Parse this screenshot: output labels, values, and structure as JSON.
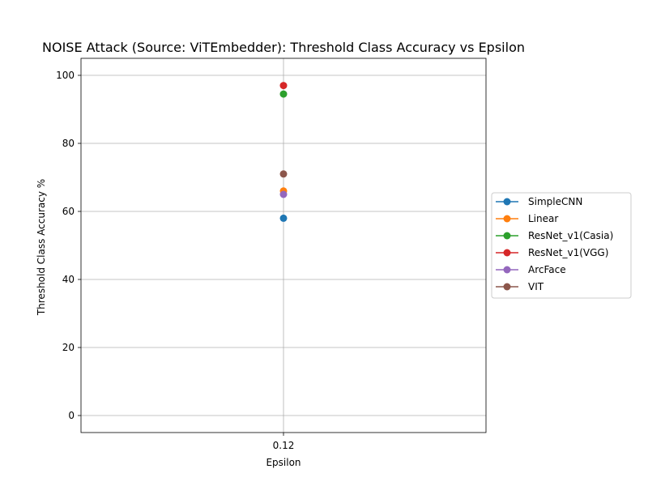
{
  "chart_data": {
    "type": "line",
    "title": "NOISE Attack (Source: ViTEmbedder): Threshold Class Accuracy vs Epsilon",
    "xlabel": "Epsilon",
    "ylabel": "Threshold Class Accuracy %",
    "x": [
      "0.12"
    ],
    "ylim": [
      -5,
      105
    ],
    "yticks": [
      0,
      20,
      40,
      60,
      80,
      100
    ],
    "grid": true,
    "legend_position": "center-left outside right",
    "series": [
      {
        "name": "SimpleCNN",
        "color": "#1f77b4",
        "values": [
          58.0
        ]
      },
      {
        "name": "Linear",
        "color": "#ff7f0e",
        "values": [
          66.0
        ]
      },
      {
        "name": "ResNet_v1(Casia)",
        "color": "#2ca02c",
        "values": [
          94.5
        ]
      },
      {
        "name": "ResNet_v1(VGG)",
        "color": "#d62728",
        "values": [
          97.0
        ]
      },
      {
        "name": "ArcFace",
        "color": "#9467bd",
        "values": [
          65.0
        ]
      },
      {
        "name": "VIT",
        "color": "#8c564b",
        "values": [
          71.0
        ]
      }
    ]
  }
}
